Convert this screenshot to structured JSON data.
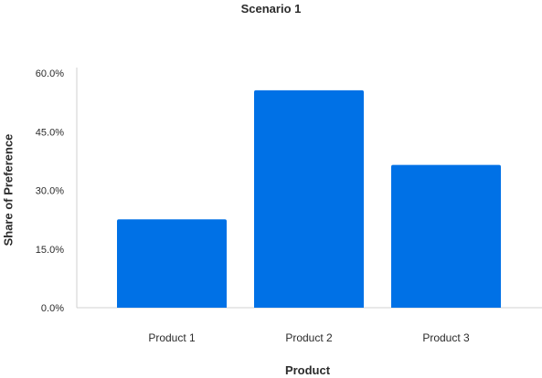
{
  "chart_data": {
    "type": "bar",
    "title": "Scenario 1",
    "xlabel": "Product",
    "ylabel": "Share of Preference",
    "categories": [
      "Product 1",
      "Product 2",
      "Product 3"
    ],
    "values": [
      22.6,
      55.6,
      36.5
    ],
    "yticks": [
      "0.0%",
      "15.0%",
      "30.0%",
      "45.0%",
      "60.0%"
    ],
    "ytick_values": [
      0,
      15,
      30,
      45,
      60
    ],
    "ylim": [
      0,
      60
    ],
    "grid": false,
    "legend": "none",
    "colors": {
      "bar": "#0071e6",
      "axis": "#d0d0d0",
      "text": "#2b2b2b"
    }
  }
}
